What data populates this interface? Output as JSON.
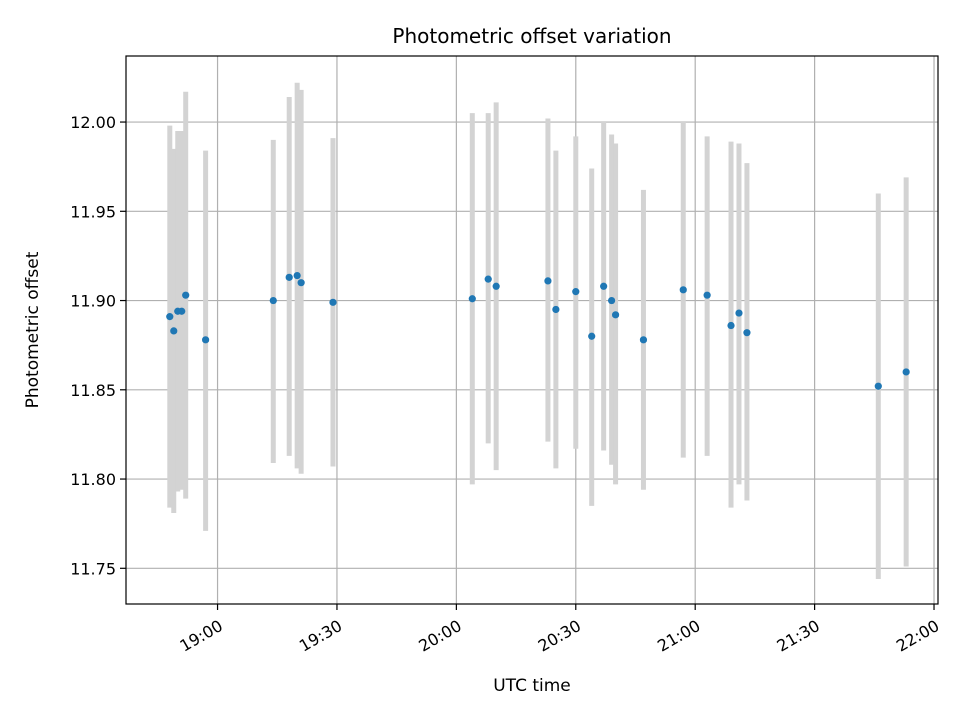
{
  "chart_data": {
    "type": "scatter",
    "title": "Photometric offset variation",
    "xlabel": "UTC time",
    "ylabel": "Photometric offset",
    "grid": true,
    "legend": "none",
    "colors": {
      "point": "#1f77b4",
      "errorbar": "#d3d3d3",
      "grid": "#b0b0b0"
    },
    "xlim": [
      "18:37",
      "22:01"
    ],
    "ylim": [
      11.73,
      12.037
    ],
    "x_ticks": [
      "19:00",
      "19:30",
      "20:00",
      "20:30",
      "21:00",
      "21:30",
      "22:00"
    ],
    "y_ticks": [
      "11.75",
      "11.80",
      "11.85",
      "11.90",
      "11.95",
      "12.00"
    ],
    "series": [
      {
        "points": [
          {
            "x": "18:48",
            "y": 11.891,
            "ylow": 11.784,
            "yhigh": 11.998
          },
          {
            "x": "18:49",
            "y": 11.883,
            "ylow": 11.781,
            "yhigh": 11.985
          },
          {
            "x": "18:50",
            "y": 11.894,
            "ylow": 11.793,
            "yhigh": 11.995
          },
          {
            "x": "18:51",
            "y": 11.894,
            "ylow": 11.794,
            "yhigh": 11.995
          },
          {
            "x": "18:52",
            "y": 11.903,
            "ylow": 11.789,
            "yhigh": 12.017
          },
          {
            "x": "18:57",
            "y": 11.878,
            "ylow": 11.771,
            "yhigh": 11.984
          },
          {
            "x": "19:14",
            "y": 11.9,
            "ylow": 11.809,
            "yhigh": 11.99
          },
          {
            "x": "19:18",
            "y": 11.913,
            "ylow": 11.813,
            "yhigh": 12.014
          },
          {
            "x": "19:20",
            "y": 11.914,
            "ylow": 11.806,
            "yhigh": 12.022
          },
          {
            "x": "19:21",
            "y": 11.91,
            "ylow": 11.803,
            "yhigh": 12.018
          },
          {
            "x": "19:29",
            "y": 11.899,
            "ylow": 11.807,
            "yhigh": 11.991
          },
          {
            "x": "20:04",
            "y": 11.901,
            "ylow": 11.797,
            "yhigh": 12.005
          },
          {
            "x": "20:08",
            "y": 11.912,
            "ylow": 11.82,
            "yhigh": 12.005
          },
          {
            "x": "20:10",
            "y": 11.908,
            "ylow": 11.805,
            "yhigh": 12.011
          },
          {
            "x": "20:23",
            "y": 11.911,
            "ylow": 11.821,
            "yhigh": 12.002
          },
          {
            "x": "20:25",
            "y": 11.895,
            "ylow": 11.806,
            "yhigh": 11.984
          },
          {
            "x": "20:30",
            "y": 11.905,
            "ylow": 11.817,
            "yhigh": 11.992
          },
          {
            "x": "20:34",
            "y": 11.88,
            "ylow": 11.785,
            "yhigh": 11.974
          },
          {
            "x": "20:37",
            "y": 11.908,
            "ylow": 11.816,
            "yhigh": 12.0
          },
          {
            "x": "20:39",
            "y": 11.9,
            "ylow": 11.808,
            "yhigh": 11.993
          },
          {
            "x": "20:40",
            "y": 11.892,
            "ylow": 11.797,
            "yhigh": 11.988
          },
          {
            "x": "20:47",
            "y": 11.878,
            "ylow": 11.794,
            "yhigh": 11.962
          },
          {
            "x": "20:57",
            "y": 11.906,
            "ylow": 11.812,
            "yhigh": 12.0
          },
          {
            "x": "21:03",
            "y": 11.903,
            "ylow": 11.813,
            "yhigh": 11.992
          },
          {
            "x": "21:09",
            "y": 11.886,
            "ylow": 11.784,
            "yhigh": 11.989
          },
          {
            "x": "21:11",
            "y": 11.893,
            "ylow": 11.797,
            "yhigh": 11.988
          },
          {
            "x": "21:13",
            "y": 11.882,
            "ylow": 11.788,
            "yhigh": 11.977
          },
          {
            "x": "21:46",
            "y": 11.852,
            "ylow": 11.744,
            "yhigh": 11.96
          },
          {
            "x": "21:53",
            "y": 11.86,
            "ylow": 11.751,
            "yhigh": 11.969
          }
        ]
      }
    ]
  }
}
